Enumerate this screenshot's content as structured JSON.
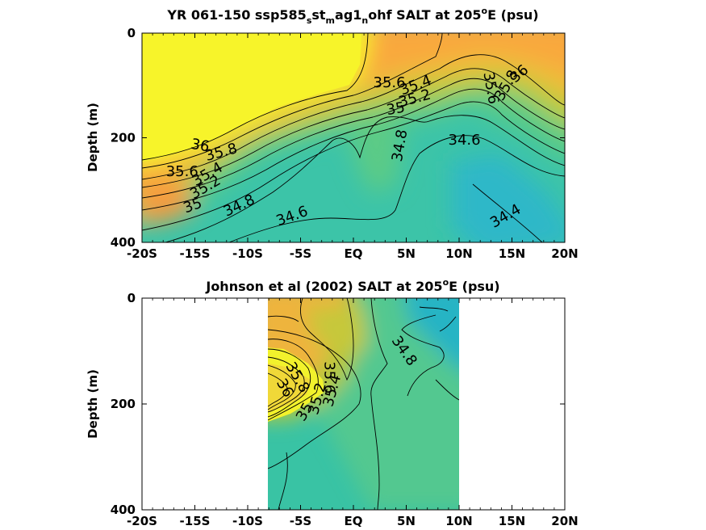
{
  "chart_data": [
    {
      "type": "heatmap",
      "title": {
        "prefix": "YR 061-150 ssp585",
        "s1": "s",
        "m1": "st",
        "s2": "m",
        "m2": "ag1",
        "s3": "n",
        "suffix": "ohf SALT at 205",
        "deg": "o",
        "tail": "E (psu)"
      },
      "ylabel": "Depth (m)",
      "xlim": [
        -20,
        20
      ],
      "ylim": [
        0,
        400
      ],
      "x_ticks": [
        -20,
        -15,
        -10,
        -5,
        0,
        5,
        10,
        15,
        20
      ],
      "x_tick_labels": [
        "-20S",
        "-15S",
        "-10S",
        "-5S",
        "EQ",
        "5N",
        "10N",
        "15N",
        "20N"
      ],
      "y_ticks": [
        0,
        200,
        400
      ],
      "y_tick_labels": [
        "0",
        "200",
        "400"
      ],
      "data_extent": [
        -20,
        20
      ],
      "contour_labels": [
        {
          "text": "36",
          "x": -14.5,
          "y": 215,
          "rot": 10
        },
        {
          "text": "35.8",
          "x": -12.5,
          "y": 228,
          "rot": -15
        },
        {
          "text": "35.6",
          "x": -16.2,
          "y": 265,
          "rot": 0
        },
        {
          "text": "35.4",
          "x": -13.8,
          "y": 270,
          "rot": -30
        },
        {
          "text": "35.2",
          "x": -14.0,
          "y": 295,
          "rot": -30
        },
        {
          "text": "35",
          "x": -15.2,
          "y": 330,
          "rot": -20
        },
        {
          "text": "34.8",
          "x": -10.8,
          "y": 330,
          "rot": -25
        },
        {
          "text": "34.6",
          "x": -5.8,
          "y": 350,
          "rot": -20
        },
        {
          "text": "35.6",
          "x": 3.4,
          "y": 95,
          "rot": 0
        },
        {
          "text": "35.4",
          "x": 5.9,
          "y": 100,
          "rot": -20
        },
        {
          "text": "35.2",
          "x": 5.8,
          "y": 125,
          "rot": -15
        },
        {
          "text": "35",
          "x": 4.0,
          "y": 145,
          "rot": -10
        },
        {
          "text": "34.8",
          "x": 4.4,
          "y": 215,
          "rot": -80
        },
        {
          "text": "34.6",
          "x": 10.5,
          "y": 205,
          "rot": 0
        },
        {
          "text": "35.6",
          "x": 13.0,
          "y": 105,
          "rot": 80
        },
        {
          "text": "35.8",
          "x": 14.5,
          "y": 100,
          "rot": -60
        },
        {
          "text": "36",
          "x": 15.7,
          "y": 78,
          "rot": -40
        },
        {
          "text": "34.4",
          "x": 14.4,
          "y": 350,
          "rot": -30
        }
      ]
    },
    {
      "type": "heatmap",
      "title": {
        "prefix": "Johnson et al (2002) SALT at 205",
        "deg": "o",
        "tail": "E (psu)"
      },
      "ylabel": "Depth (m)",
      "xlim": [
        -20,
        20
      ],
      "ylim": [
        0,
        400
      ],
      "x_ticks": [
        -20,
        -15,
        -10,
        -5,
        0,
        5,
        10,
        15,
        20
      ],
      "x_tick_labels": [
        "-20S",
        "-15S",
        "-10S",
        "-5S",
        "EQ",
        "5N",
        "10N",
        "15N",
        "20N"
      ],
      "y_ticks": [
        0,
        200,
        400
      ],
      "y_tick_labels": [
        "0",
        "200",
        "400"
      ],
      "data_extent": [
        -8,
        10
      ],
      "contour_labels": [
        {
          "text": "34.8",
          "x": 4.8,
          "y": 100,
          "rot": 55
        },
        {
          "text": "35.6",
          "x": -2.3,
          "y": 150,
          "rot": 90
        },
        {
          "text": "35.4",
          "x": -2.0,
          "y": 175,
          "rot": -75
        },
        {
          "text": "35.2",
          "x": -3.4,
          "y": 190,
          "rot": -75
        },
        {
          "text": "35",
          "x": -4.6,
          "y": 215,
          "rot": -60
        },
        {
          "text": "35.8",
          "x": -5.3,
          "y": 150,
          "rot": 60
        },
        {
          "text": "36",
          "x": -6.5,
          "y": 170,
          "rot": 60
        }
      ]
    }
  ]
}
